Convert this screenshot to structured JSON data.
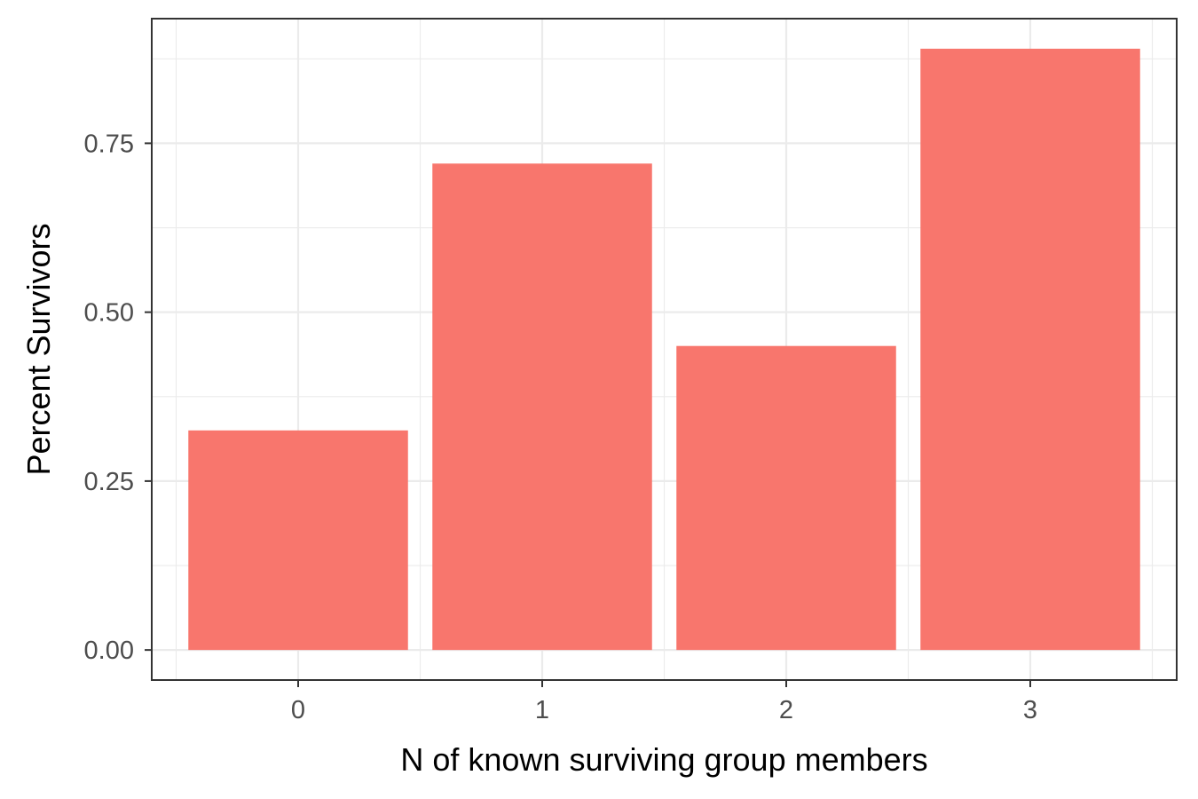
{
  "chart_data": {
    "type": "bar",
    "categories": [
      "0",
      "1",
      "2",
      "3"
    ],
    "values": [
      0.325,
      0.72,
      0.45,
      0.89
    ],
    "title": "",
    "xlabel": "N of known surviving group members",
    "ylabel": "Percent Survivors",
    "ylim": [
      -0.0445,
      0.9345
    ],
    "yticks": [
      0.0,
      0.25,
      0.5,
      0.75
    ],
    "ytick_labels": [
      "0.00",
      "0.25",
      "0.50",
      "0.75"
    ],
    "grid": true,
    "legend": "none",
    "bar_color": "#F8766D",
    "panel_background": "#FFFFFF",
    "grid_color": "#EBEBEB",
    "border_color": "#333333"
  }
}
